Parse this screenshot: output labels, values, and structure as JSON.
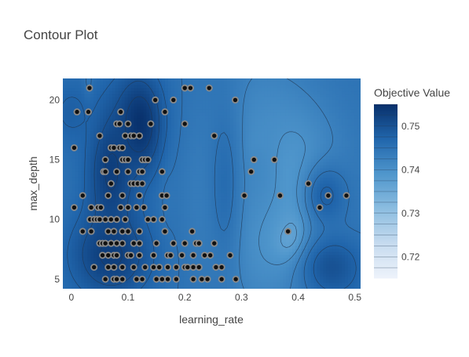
{
  "chart_data": {
    "type": "contour",
    "title": "Contour Plot",
    "xlabel": "learning_rate",
    "ylabel": "max_depth",
    "xlim": [
      -0.015,
      0.51
    ],
    "ylim": [
      4.2,
      21.8
    ],
    "xticks": [
      0,
      0.1,
      0.2,
      0.3,
      0.4,
      0.5
    ],
    "xtick_labels": [
      "0",
      "0.1",
      "0.2",
      "0.3",
      "0.4",
      "0.5"
    ],
    "yticks": [
      5,
      10,
      15,
      20
    ],
    "ytick_labels": [
      "5",
      "10",
      "15",
      "20"
    ],
    "colorbar": {
      "title": "Objective Value",
      "min": 0.715,
      "max": 0.755,
      "ticks": [
        0.72,
        0.73,
        0.74,
        0.75
      ],
      "tick_labels": [
        "0.72",
        "0.73",
        "0.74",
        "0.75"
      ],
      "colorscale": [
        "#eef3fb",
        "#c6dbef",
        "#8cbde0",
        "#4f96cc",
        "#2166ac",
        "#08306b"
      ]
    },
    "background_value": 0.745,
    "features": [
      {
        "x": 0.325,
        "y": 15,
        "value": 0.716,
        "sx": 0.013,
        "sy": 1.3
      },
      {
        "x": 0.368,
        "y": 12,
        "value": 0.718,
        "sx": 0.014,
        "sy": 1.6
      },
      {
        "x": 0.382,
        "y": 9,
        "value": 0.719,
        "sx": 0.018,
        "sy": 1.3
      },
      {
        "x": 0.36,
        "y": 12,
        "value": 0.735,
        "sx": 0.075,
        "sy": 5.5
      },
      {
        "x": 0.33,
        "y": 14,
        "value": 0.741,
        "sx": 0.05,
        "sy": 6
      },
      {
        "x": 0.27,
        "y": 13,
        "value": 0.746,
        "sx": 0.025,
        "sy": 6
      },
      {
        "x": 0.168,
        "y": 12,
        "value": 0.744,
        "sx": 0.009,
        "sy": 3
      },
      {
        "x": 0.03,
        "y": 21,
        "value": 0.742,
        "sx": 0.006,
        "sy": 1
      },
      {
        "x": 0.12,
        "y": 18,
        "value": 0.755,
        "sx": 0.03,
        "sy": 3
      },
      {
        "x": 0.07,
        "y": 14,
        "value": 0.753,
        "sx": 0.03,
        "sy": 4
      },
      {
        "x": 0.07,
        "y": 7,
        "value": 0.753,
        "sx": 0.05,
        "sy": 2.5
      },
      {
        "x": 0.0,
        "y": 19,
        "value": 0.748,
        "sx": 0.03,
        "sy": 2
      },
      {
        "x": 0.45,
        "y": 12,
        "value": 0.748,
        "sx": 0.03,
        "sy": 2
      },
      {
        "x": 0.46,
        "y": 6,
        "value": 0.75,
        "sx": 0.04,
        "sy": 2
      }
    ],
    "points": [
      [
        0.032,
        21
      ],
      [
        0.21,
        21
      ],
      [
        0.2,
        21
      ],
      [
        0.243,
        21
      ],
      [
        0.148,
        20
      ],
      [
        0.18,
        20
      ],
      [
        0.289,
        20
      ],
      [
        0.01,
        19
      ],
      [
        0.03,
        19
      ],
      [
        0.087,
        19
      ],
      [
        0.165,
        19
      ],
      [
        0.08,
        18
      ],
      [
        0.085,
        18
      ],
      [
        0.1,
        18
      ],
      [
        0.14,
        18
      ],
      [
        0.2,
        18
      ],
      [
        0.05,
        17
      ],
      [
        0.095,
        17
      ],
      [
        0.105,
        17
      ],
      [
        0.11,
        17
      ],
      [
        0.12,
        17
      ],
      [
        0.252,
        17
      ],
      [
        0.005,
        16
      ],
      [
        0.07,
        16
      ],
      [
        0.075,
        16
      ],
      [
        0.085,
        16
      ],
      [
        0.09,
        16
      ],
      [
        0.06,
        15
      ],
      [
        0.09,
        15
      ],
      [
        0.095,
        15
      ],
      [
        0.1,
        15
      ],
      [
        0.125,
        15
      ],
      [
        0.13,
        15
      ],
      [
        0.135,
        15
      ],
      [
        0.322,
        15
      ],
      [
        0.358,
        15
      ],
      [
        0.057,
        14
      ],
      [
        0.06,
        14
      ],
      [
        0.08,
        14
      ],
      [
        0.1,
        14
      ],
      [
        0.12,
        14
      ],
      [
        0.125,
        14
      ],
      [
        0.16,
        14
      ],
      [
        0.317,
        14
      ],
      [
        0.07,
        13
      ],
      [
        0.105,
        13
      ],
      [
        0.11,
        13
      ],
      [
        0.117,
        13
      ],
      [
        0.125,
        13
      ],
      [
        0.418,
        13
      ],
      [
        0.02,
        12
      ],
      [
        0.065,
        12
      ],
      [
        0.09,
        12
      ],
      [
        0.12,
        12
      ],
      [
        0.16,
        12
      ],
      [
        0.168,
        12
      ],
      [
        0.305,
        12
      ],
      [
        0.368,
        12
      ],
      [
        0.453,
        12
      ],
      [
        0.485,
        12
      ],
      [
        0.005,
        11
      ],
      [
        0.035,
        11
      ],
      [
        0.047,
        11
      ],
      [
        0.052,
        11
      ],
      [
        0.087,
        11
      ],
      [
        0.1,
        11
      ],
      [
        0.115,
        11
      ],
      [
        0.128,
        11
      ],
      [
        0.165,
        11
      ],
      [
        0.438,
        11
      ],
      [
        0.033,
        10
      ],
      [
        0.04,
        10
      ],
      [
        0.045,
        10
      ],
      [
        0.05,
        10
      ],
      [
        0.06,
        10
      ],
      [
        0.07,
        10
      ],
      [
        0.08,
        10
      ],
      [
        0.095,
        10
      ],
      [
        0.135,
        10
      ],
      [
        0.145,
        10
      ],
      [
        0.16,
        10
      ],
      [
        0.02,
        9
      ],
      [
        0.035,
        9
      ],
      [
        0.065,
        9
      ],
      [
        0.075,
        9
      ],
      [
        0.09,
        9
      ],
      [
        0.1,
        9
      ],
      [
        0.12,
        9
      ],
      [
        0.165,
        9
      ],
      [
        0.213,
        9
      ],
      [
        0.382,
        9
      ],
      [
        0.05,
        8
      ],
      [
        0.055,
        8
      ],
      [
        0.06,
        8
      ],
      [
        0.07,
        8
      ],
      [
        0.08,
        8
      ],
      [
        0.09,
        8
      ],
      [
        0.11,
        8
      ],
      [
        0.12,
        8
      ],
      [
        0.15,
        8
      ],
      [
        0.18,
        8
      ],
      [
        0.2,
        8
      ],
      [
        0.22,
        8
      ],
      [
        0.225,
        8
      ],
      [
        0.252,
        8
      ],
      [
        0.055,
        7
      ],
      [
        0.065,
        7
      ],
      [
        0.075,
        7
      ],
      [
        0.08,
        7
      ],
      [
        0.1,
        7
      ],
      [
        0.105,
        7
      ],
      [
        0.12,
        7
      ],
      [
        0.145,
        7
      ],
      [
        0.17,
        7
      ],
      [
        0.175,
        7
      ],
      [
        0.195,
        7
      ],
      [
        0.215,
        7
      ],
      [
        0.235,
        7
      ],
      [
        0.245,
        7
      ],
      [
        0.28,
        7
      ],
      [
        0.04,
        6
      ],
      [
        0.065,
        6
      ],
      [
        0.075,
        6
      ],
      [
        0.09,
        6
      ],
      [
        0.11,
        6
      ],
      [
        0.13,
        6
      ],
      [
        0.145,
        6
      ],
      [
        0.155,
        6
      ],
      [
        0.17,
        6
      ],
      [
        0.185,
        6
      ],
      [
        0.2,
        6
      ],
      [
        0.205,
        6
      ],
      [
        0.215,
        6
      ],
      [
        0.225,
        6
      ],
      [
        0.255,
        6
      ],
      [
        0.265,
        6
      ],
      [
        0.06,
        5
      ],
      [
        0.075,
        5
      ],
      [
        0.08,
        5
      ],
      [
        0.09,
        5
      ],
      [
        0.115,
        5
      ],
      [
        0.125,
        5
      ],
      [
        0.15,
        5
      ],
      [
        0.16,
        5
      ],
      [
        0.17,
        5
      ],
      [
        0.185,
        5
      ],
      [
        0.215,
        5
      ],
      [
        0.23,
        5
      ],
      [
        0.24,
        5
      ],
      [
        0.265,
        5
      ],
      [
        0.29,
        5
      ]
    ]
  }
}
